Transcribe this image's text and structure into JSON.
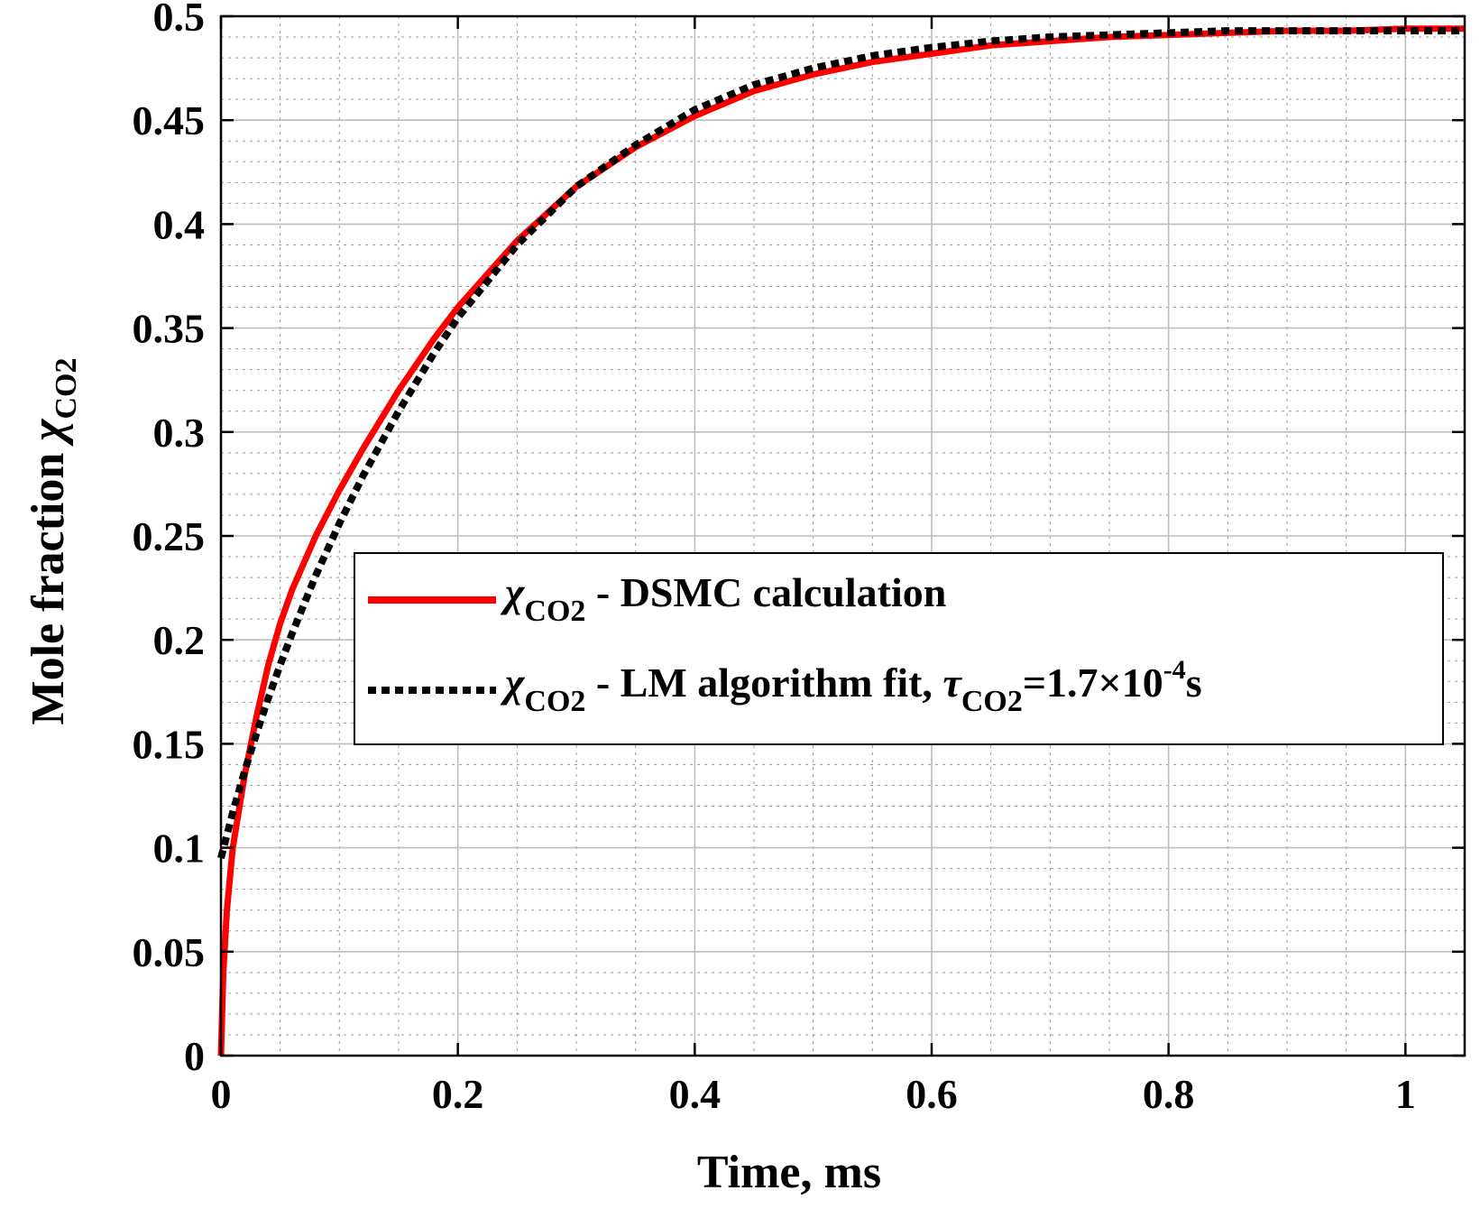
{
  "chart_data": {
    "type": "line",
    "title": "",
    "xlabel": "Time, ms",
    "ylabel": {
      "main": "Mole fraction ",
      "symbol": "χ",
      "subscript": "CO2"
    },
    "xlim": [
      0,
      1.05
    ],
    "ylim": [
      0,
      0.5
    ],
    "xticks": [
      0,
      0.2,
      0.4,
      0.6,
      0.8,
      1
    ],
    "xtick_labels": [
      "0",
      "0.2",
      "0.4",
      "0.6",
      "0.8",
      "1"
    ],
    "yticks": [
      0,
      0.05,
      0.1,
      0.15,
      0.2,
      0.25,
      0.3,
      0.35,
      0.4,
      0.45,
      0.5
    ],
    "ytick_labels": [
      "0",
      "0.05",
      "0.1",
      "0.15",
      "0.2",
      "0.25",
      "0.3",
      "0.35",
      "0.4",
      "0.45",
      "0.5"
    ],
    "grid": true,
    "minor_grid": true,
    "legend_position": "center-right",
    "series": [
      {
        "name": "χCO2 - DSMC calculation",
        "color": "#ff0000",
        "style": "solid",
        "legend": {
          "symbol": "χ",
          "subscript": "CO2",
          "text": " - DSMC calculation"
        },
        "x": [
          0,
          0.002,
          0.005,
          0.01,
          0.02,
          0.03,
          0.04,
          0.05,
          0.06,
          0.08,
          0.1,
          0.12,
          0.15,
          0.18,
          0.2,
          0.25,
          0.3,
          0.35,
          0.4,
          0.45,
          0.5,
          0.55,
          0.6,
          0.65,
          0.7,
          0.75,
          0.8,
          0.85,
          0.9,
          0.95,
          1.0,
          1.05
        ],
        "values": [
          0,
          0.04,
          0.07,
          0.1,
          0.135,
          0.163,
          0.188,
          0.208,
          0.224,
          0.25,
          0.272,
          0.292,
          0.32,
          0.345,
          0.36,
          0.392,
          0.418,
          0.437,
          0.452,
          0.464,
          0.472,
          0.478,
          0.482,
          0.486,
          0.488,
          0.49,
          0.491,
          0.492,
          0.493,
          0.493,
          0.494,
          0.494
        ]
      },
      {
        "name": "χCO2 - LM algorithm fit, τCO2=1.7×10-4s",
        "color": "#000000",
        "style": "dotted",
        "legend": {
          "symbol": "χ",
          "subscript": "CO2",
          "text": " - LM algorithm fit, ",
          "tau_symbol": "τ",
          "tau_subscript": "CO2",
          "value_text": "=1.7×10",
          "exponent": "-4",
          "unit": "s"
        },
        "x": [
          0,
          0.01,
          0.02,
          0.03,
          0.04,
          0.05,
          0.06,
          0.08,
          0.1,
          0.12,
          0.15,
          0.18,
          0.2,
          0.25,
          0.3,
          0.35,
          0.4,
          0.45,
          0.5,
          0.55,
          0.6,
          0.65,
          0.7,
          0.75,
          0.8,
          0.85,
          0.9,
          0.95,
          1.0,
          1.05
        ],
        "values": [
          0.095,
          0.117,
          0.137,
          0.155,
          0.172,
          0.188,
          0.203,
          0.231,
          0.256,
          0.279,
          0.31,
          0.338,
          0.355,
          0.39,
          0.418,
          0.438,
          0.455,
          0.467,
          0.475,
          0.481,
          0.485,
          0.488,
          0.49,
          0.491,
          0.492,
          0.493,
          0.493,
          0.493,
          0.493,
          0.493
        ]
      }
    ]
  }
}
